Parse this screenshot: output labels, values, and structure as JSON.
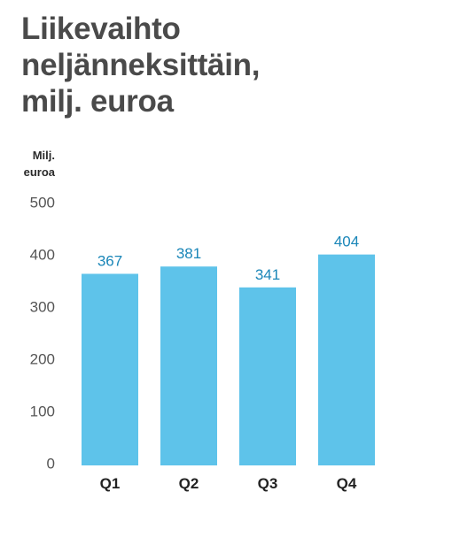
{
  "title_lines": [
    "Liikevaihto",
    "neljänneksittäin,",
    "milj. euroa"
  ],
  "ylabel_lines": [
    "Milj.",
    "euroa"
  ],
  "colors": {
    "bar": "#5ec3ea",
    "value_label": "#1a86b8",
    "title": "#4a4a4a"
  },
  "chart_data": {
    "type": "bar",
    "title": "Liikevaihto neljänneksittäin, milj. euroa",
    "ylabel": "Milj. euroa",
    "xlabel": "",
    "categories": [
      "Q1",
      "Q2",
      "Q3",
      "Q4"
    ],
    "values": [
      367,
      381,
      341,
      404
    ],
    "value_labels": [
      "367",
      "381",
      "341",
      "404"
    ],
    "yticks": [
      0,
      100,
      200,
      300,
      400,
      500
    ],
    "ylim": [
      0,
      500
    ],
    "grid": false,
    "legend": false
  }
}
